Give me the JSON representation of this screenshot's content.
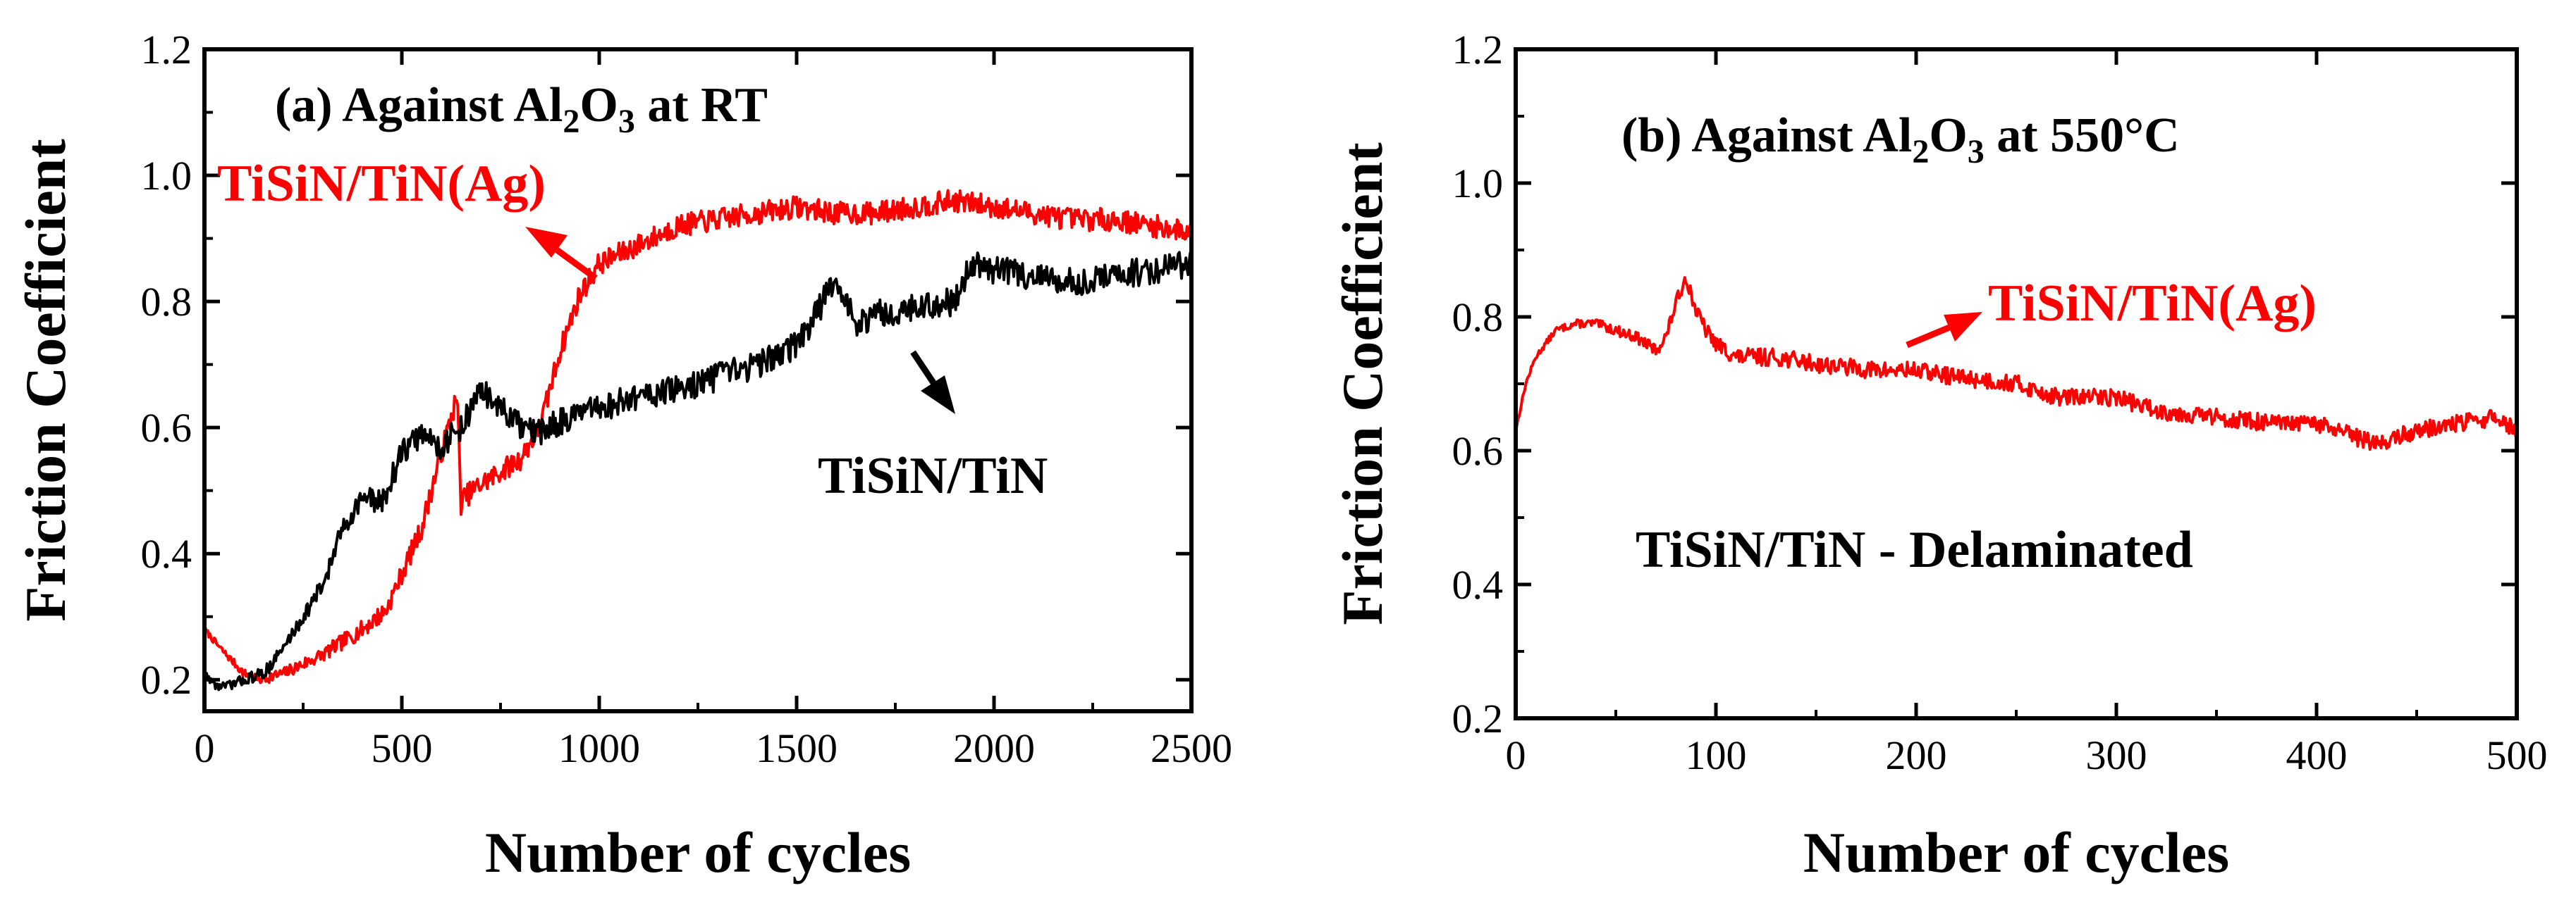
{
  "colors": {
    "red_series": "#ff0000",
    "black_series": "#000000"
  },
  "chart_data": [
    {
      "type": "line",
      "panel": "(a)",
      "title": {
        "prefix": "(a)  Against Al",
        "sub1": "2",
        "mid": "O",
        "sub2": "3",
        "suffix": " at RT"
      },
      "xlabel": "Number of cycles",
      "ylabel": "Friction Coefficient",
      "xlim": [
        0,
        2500
      ],
      "ylim": [
        0.15,
        1.2
      ],
      "xticks": [
        0,
        500,
        1000,
        1500,
        2000,
        2500
      ],
      "yticks": [
        0.2,
        0.4,
        0.6,
        0.8,
        1.0,
        1.2
      ],
      "ytick_labels": [
        "0.2",
        "0.4",
        "0.6",
        "0.8",
        "1.0",
        "1.2"
      ],
      "series": [
        {
          "name": "TiSiN/TiN(Ag)",
          "color": "#ff0000",
          "noise": 0.018,
          "x": [
            0,
            40,
            100,
            140,
            200,
            300,
            400,
            460,
            550,
            600,
            640,
            650,
            660,
            700,
            800,
            850,
            900,
            950,
            1000,
            1100,
            1200,
            1300,
            1400,
            1500,
            1600,
            1700,
            1800,
            1900,
            2000,
            2100,
            2200,
            2300,
            2400,
            2500
          ],
          "y": [
            0.28,
            0.25,
            0.21,
            0.2,
            0.21,
            0.24,
            0.28,
            0.31,
            0.44,
            0.56,
            0.65,
            0.48,
            0.49,
            0.51,
            0.55,
            0.6,
            0.72,
            0.81,
            0.86,
            0.89,
            0.92,
            0.93,
            0.94,
            0.95,
            0.94,
            0.94,
            0.95,
            0.96,
            0.95,
            0.94,
            0.93,
            0.93,
            0.92,
            0.91
          ]
        },
        {
          "name": "TiSiN/TiN",
          "color": "#000000",
          "noise": 0.022,
          "x": [
            0,
            30,
            60,
            100,
            150,
            200,
            250,
            300,
            350,
            400,
            450,
            500,
            550,
            600,
            650,
            700,
            750,
            800,
            850,
            900,
            1000,
            1100,
            1200,
            1300,
            1400,
            1500,
            1550,
            1600,
            1650,
            1700,
            1800,
            1900,
            1940,
            1950,
            2000,
            2100,
            2200,
            2300,
            2400,
            2500
          ],
          "y": [
            0.21,
            0.19,
            0.19,
            0.2,
            0.21,
            0.25,
            0.3,
            0.35,
            0.44,
            0.49,
            0.48,
            0.56,
            0.59,
            0.57,
            0.6,
            0.66,
            0.63,
            0.6,
            0.59,
            0.61,
            0.63,
            0.65,
            0.66,
            0.68,
            0.7,
            0.73,
            0.78,
            0.84,
            0.76,
            0.78,
            0.79,
            0.8,
            0.86,
            0.86,
            0.85,
            0.84,
            0.83,
            0.84,
            0.85,
            0.86
          ]
        }
      ],
      "labels": {
        "red": "TiSiN/TiN(Ag)",
        "black": "TiSiN/TiN"
      }
    },
    {
      "type": "line",
      "panel": "(b)",
      "title": {
        "prefix": "(b)  Against Al",
        "sub1": "2",
        "mid": "O",
        "sub2": "3",
        "suffix": " at 550°C"
      },
      "xlabel": "Number of cycles",
      "ylabel": "Friction Coefficient",
      "xlim": [
        0,
        500
      ],
      "ylim": [
        0.2,
        1.2
      ],
      "xticks": [
        0,
        100,
        200,
        300,
        400,
        500
      ],
      "yticks": [
        0.2,
        0.4,
        0.6,
        0.8,
        1.0,
        1.2
      ],
      "ytick_labels": [
        "0.2",
        "0.4",
        "0.6",
        "0.8",
        "1.0",
        "1.2"
      ],
      "series": [
        {
          "name": "TiSiN/TiN(Ag)",
          "color": "#ff0000",
          "noise": 0.013,
          "x": [
            0,
            5,
            10,
            20,
            30,
            40,
            50,
            60,
            70,
            75,
            80,
            85,
            90,
            95,
            100,
            110,
            130,
            150,
            180,
            200,
            220,
            250,
            270,
            300,
            320,
            350,
            380,
            400,
            420,
            430,
            450,
            470,
            490,
            500
          ],
          "y": [
            0.63,
            0.7,
            0.74,
            0.78,
            0.79,
            0.79,
            0.78,
            0.77,
            0.75,
            0.77,
            0.82,
            0.86,
            0.81,
            0.78,
            0.76,
            0.74,
            0.74,
            0.73,
            0.72,
            0.72,
            0.71,
            0.7,
            0.68,
            0.68,
            0.66,
            0.65,
            0.64,
            0.64,
            0.62,
            0.61,
            0.63,
            0.64,
            0.65,
            0.63
          ]
        }
      ],
      "labels": {
        "red": "TiSiN/TiN(Ag)",
        "note": "TiSiN/TiN -  Delaminated"
      }
    }
  ]
}
